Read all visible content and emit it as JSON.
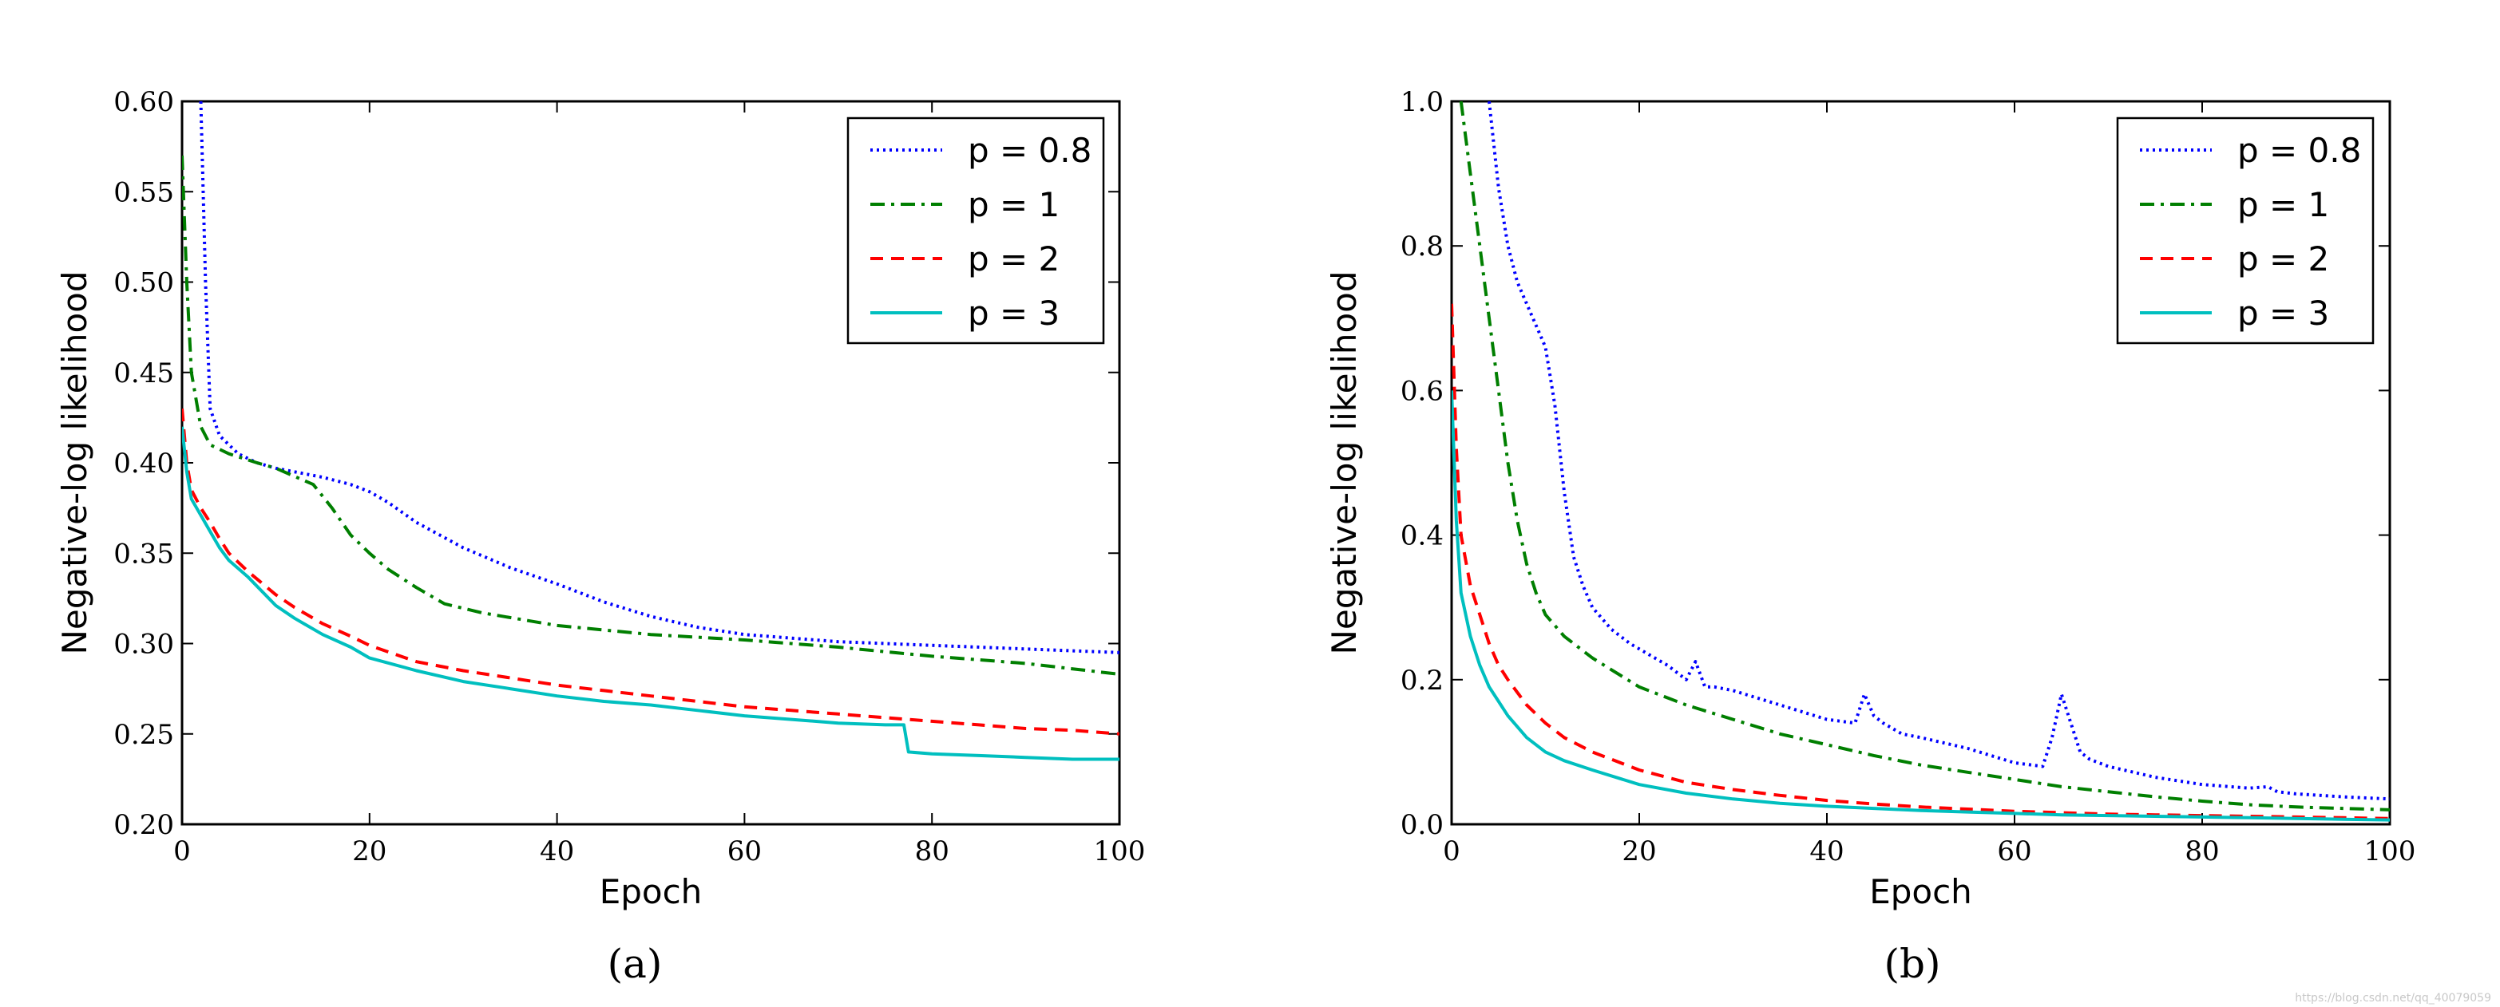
{
  "watermark": "https://blog.csdn.net/qq_40079059",
  "chart_data": [
    {
      "type": "line",
      "caption": "(a)",
      "xlabel": "Epoch",
      "ylabel": "Negative-log likelihood",
      "xlim": [
        0,
        100
      ],
      "ylim": [
        0.2,
        0.6
      ],
      "xticks": [
        0,
        20,
        40,
        60,
        80,
        100
      ],
      "yticks": [
        0.2,
        0.25,
        0.3,
        0.35,
        0.4,
        0.45,
        0.5,
        0.55,
        0.6
      ],
      "ytick_labels": [
        "0.20",
        "0.25",
        "0.30",
        "0.35",
        "0.40",
        "0.45",
        "0.50",
        "0.55",
        "0.60"
      ],
      "legend_position": "top-right",
      "grid": false,
      "series": [
        {
          "name": "p = 0.8",
          "color": "#0000ff",
          "style": "dotted",
          "x": [
            2,
            2.5,
            3,
            4,
            5,
            6,
            8,
            10,
            12,
            15,
            18,
            20,
            22,
            25,
            30,
            35,
            40,
            45,
            50,
            55,
            60,
            65,
            70,
            75,
            80,
            85,
            90,
            95,
            100
          ],
          "y": [
            0.6,
            0.5,
            0.43,
            0.415,
            0.41,
            0.405,
            0.4,
            0.397,
            0.395,
            0.392,
            0.388,
            0.384,
            0.378,
            0.367,
            0.353,
            0.342,
            0.333,
            0.323,
            0.315,
            0.309,
            0.305,
            0.303,
            0.301,
            0.3,
            0.299,
            0.298,
            0.297,
            0.296,
            0.295
          ]
        },
        {
          "name": "p = 1",
          "color": "#007f00",
          "style": "dashdot",
          "x": [
            0,
            0.5,
            1,
            2,
            3,
            5,
            8,
            10,
            14,
            16,
            18,
            20,
            22,
            25,
            28,
            32,
            40,
            50,
            60,
            70,
            80,
            90,
            100
          ],
          "y": [
            0.57,
            0.5,
            0.45,
            0.42,
            0.41,
            0.405,
            0.4,
            0.397,
            0.388,
            0.375,
            0.36,
            0.35,
            0.341,
            0.331,
            0.322,
            0.317,
            0.31,
            0.305,
            0.302,
            0.298,
            0.293,
            0.289,
            0.283
          ]
        },
        {
          "name": "p = 2",
          "color": "#ff0000",
          "style": "dashed",
          "x": [
            0,
            0.5,
            1,
            2,
            3,
            4,
            5,
            7,
            10,
            12,
            15,
            18,
            20,
            25,
            30,
            35,
            40,
            45,
            50,
            55,
            60,
            65,
            70,
            75,
            80,
            85,
            90,
            95,
            100
          ],
          "y": [
            0.43,
            0.4,
            0.385,
            0.375,
            0.367,
            0.358,
            0.35,
            0.34,
            0.327,
            0.32,
            0.311,
            0.304,
            0.299,
            0.29,
            0.285,
            0.281,
            0.277,
            0.274,
            0.271,
            0.268,
            0.265,
            0.263,
            0.261,
            0.259,
            0.257,
            0.255,
            0.253,
            0.252,
            0.25
          ]
        },
        {
          "name": "p = 3",
          "color": "#00bfbf",
          "style": "solid",
          "x": [
            0,
            0.5,
            1,
            2,
            3,
            4,
            5,
            7,
            10,
            12,
            15,
            18,
            20,
            25,
            30,
            35,
            40,
            45,
            50,
            55,
            60,
            65,
            70,
            75,
            77,
            77.5,
            80,
            85,
            90,
            95,
            100
          ],
          "y": [
            0.42,
            0.395,
            0.38,
            0.371,
            0.362,
            0.353,
            0.346,
            0.337,
            0.321,
            0.314,
            0.305,
            0.298,
            0.292,
            0.285,
            0.279,
            0.275,
            0.271,
            0.268,
            0.266,
            0.263,
            0.26,
            0.258,
            0.256,
            0.255,
            0.255,
            0.24,
            0.239,
            0.238,
            0.237,
            0.236,
            0.236
          ]
        }
      ]
    },
    {
      "type": "line",
      "caption": "(b)",
      "xlabel": "Epoch",
      "ylabel": "Negative-log likelihood",
      "xlim": [
        0,
        100
      ],
      "ylim": [
        0.0,
        1.0
      ],
      "xticks": [
        0,
        20,
        40,
        60,
        80,
        100
      ],
      "yticks": [
        0.0,
        0.2,
        0.4,
        0.6,
        0.8,
        1.0
      ],
      "ytick_labels": [
        "0.0",
        "0.2",
        "0.4",
        "0.6",
        "0.8",
        "1.0"
      ],
      "legend_position": "top-right",
      "grid": false,
      "series": [
        {
          "name": "p = 0.8",
          "color": "#0000ff",
          "style": "dotted",
          "x": [
            4,
            5,
            6,
            7,
            8,
            9,
            10,
            11,
            12,
            13,
            14,
            15,
            17,
            19,
            21,
            23,
            25,
            26,
            27,
            28,
            30,
            35,
            40,
            43,
            44,
            45,
            46,
            48,
            50,
            55,
            60,
            63,
            64,
            65,
            66,
            67,
            68,
            70,
            75,
            80,
            85,
            87,
            88,
            90,
            95,
            100
          ],
          "y": [
            1.0,
            0.88,
            0.8,
            0.75,
            0.72,
            0.69,
            0.66,
            0.58,
            0.46,
            0.37,
            0.33,
            0.3,
            0.27,
            0.25,
            0.235,
            0.22,
            0.2,
            0.225,
            0.19,
            0.19,
            0.185,
            0.165,
            0.145,
            0.14,
            0.18,
            0.15,
            0.14,
            0.125,
            0.12,
            0.105,
            0.085,
            0.08,
            0.12,
            0.18,
            0.14,
            0.1,
            0.09,
            0.08,
            0.065,
            0.055,
            0.05,
            0.052,
            0.045,
            0.042,
            0.038,
            0.035
          ]
        },
        {
          "name": "p = 1",
          "color": "#007f00",
          "style": "dashdot",
          "x": [
            1,
            2,
            3,
            4,
            5,
            6,
            7,
            8,
            9,
            10,
            12,
            15,
            20,
            25,
            30,
            35,
            40,
            45,
            50,
            55,
            60,
            65,
            70,
            75,
            80,
            85,
            90,
            95,
            100
          ],
          "y": [
            1.0,
            0.9,
            0.8,
            0.7,
            0.6,
            0.5,
            0.42,
            0.36,
            0.32,
            0.29,
            0.26,
            0.23,
            0.19,
            0.165,
            0.145,
            0.125,
            0.11,
            0.095,
            0.082,
            0.072,
            0.062,
            0.052,
            0.045,
            0.038,
            0.032,
            0.027,
            0.024,
            0.022,
            0.02
          ]
        },
        {
          "name": "p = 2",
          "color": "#ff0000",
          "style": "dashed",
          "x": [
            0,
            0.5,
            1,
            2,
            3,
            4,
            5,
            6,
            8,
            10,
            12,
            15,
            20,
            25,
            30,
            35,
            40,
            45,
            50,
            55,
            60,
            65,
            70,
            75,
            80,
            85,
            90,
            95,
            100
          ],
          "y": [
            0.72,
            0.52,
            0.4,
            0.33,
            0.29,
            0.25,
            0.22,
            0.2,
            0.165,
            0.14,
            0.12,
            0.1,
            0.075,
            0.058,
            0.048,
            0.04,
            0.033,
            0.028,
            0.024,
            0.021,
            0.018,
            0.016,
            0.014,
            0.013,
            0.012,
            0.011,
            0.01,
            0.009,
            0.008
          ]
        },
        {
          "name": "p = 3",
          "color": "#00bfbf",
          "style": "solid",
          "x": [
            0,
            0.5,
            1,
            2,
            3,
            4,
            5,
            6,
            8,
            10,
            12,
            15,
            20,
            25,
            30,
            35,
            40,
            45,
            50,
            55,
            60,
            65,
            70,
            75,
            80,
            85,
            90,
            95,
            100
          ],
          "y": [
            0.6,
            0.42,
            0.32,
            0.26,
            0.22,
            0.19,
            0.17,
            0.15,
            0.12,
            0.1,
            0.088,
            0.075,
            0.055,
            0.043,
            0.035,
            0.029,
            0.025,
            0.022,
            0.019,
            0.017,
            0.015,
            0.013,
            0.012,
            0.011,
            0.01,
            0.009,
            0.008,
            0.007,
            0.006
          ]
        }
      ]
    }
  ]
}
